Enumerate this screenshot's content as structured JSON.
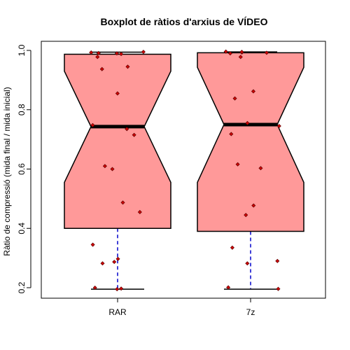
{
  "chart_data": {
    "type": "boxplot",
    "title": "Boxplot de ràtios d'arxius de VÍDEO",
    "xlabel": "",
    "ylabel": "Ràtio de compressió (mida final / mida inicial)",
    "ylim": [
      0.17,
      1.02
    ],
    "yticks": [
      0.2,
      0.4,
      0.6,
      0.8,
      1.0
    ],
    "ytick_labels": [
      "0.2",
      "0.4",
      "0.6",
      "0.8",
      "1.0"
    ],
    "notched": true,
    "categories": [
      "RAR",
      "7z"
    ],
    "colors": {
      "box_fill": "#ff9999",
      "median": "#000000",
      "whisker": "#0000cc",
      "points": "#cc0000",
      "point_edge": "#550000"
    },
    "boxes": [
      {
        "name": "RAR",
        "whisker_low": 0.195,
        "q1": 0.4,
        "notch_low": 0.555,
        "median": 0.743,
        "notch_high": 0.93,
        "q3": 0.987,
        "whisker_high": 0.994,
        "points": [
          0.195,
          0.197,
          0.2,
          0.282,
          0.287,
          0.297,
          0.345,
          0.455,
          0.487,
          0.6,
          0.61,
          0.715,
          0.735,
          0.748,
          0.855,
          0.937,
          0.945,
          0.978,
          0.988,
          0.99,
          0.991,
          0.993,
          0.995
        ]
      },
      {
        "name": "7z",
        "whisker_low": 0.195,
        "q1": 0.39,
        "notch_low": 0.555,
        "median": 0.75,
        "notch_high": 0.943,
        "q3": 0.992,
        "whisker_high": 0.995,
        "points": [
          0.196,
          0.201,
          0.282,
          0.29,
          0.335,
          0.445,
          0.477,
          0.603,
          0.616,
          0.718,
          0.745,
          0.755,
          0.838,
          0.862,
          0.978,
          0.99,
          0.992,
          0.993,
          0.995,
          0.996
        ]
      }
    ]
  }
}
